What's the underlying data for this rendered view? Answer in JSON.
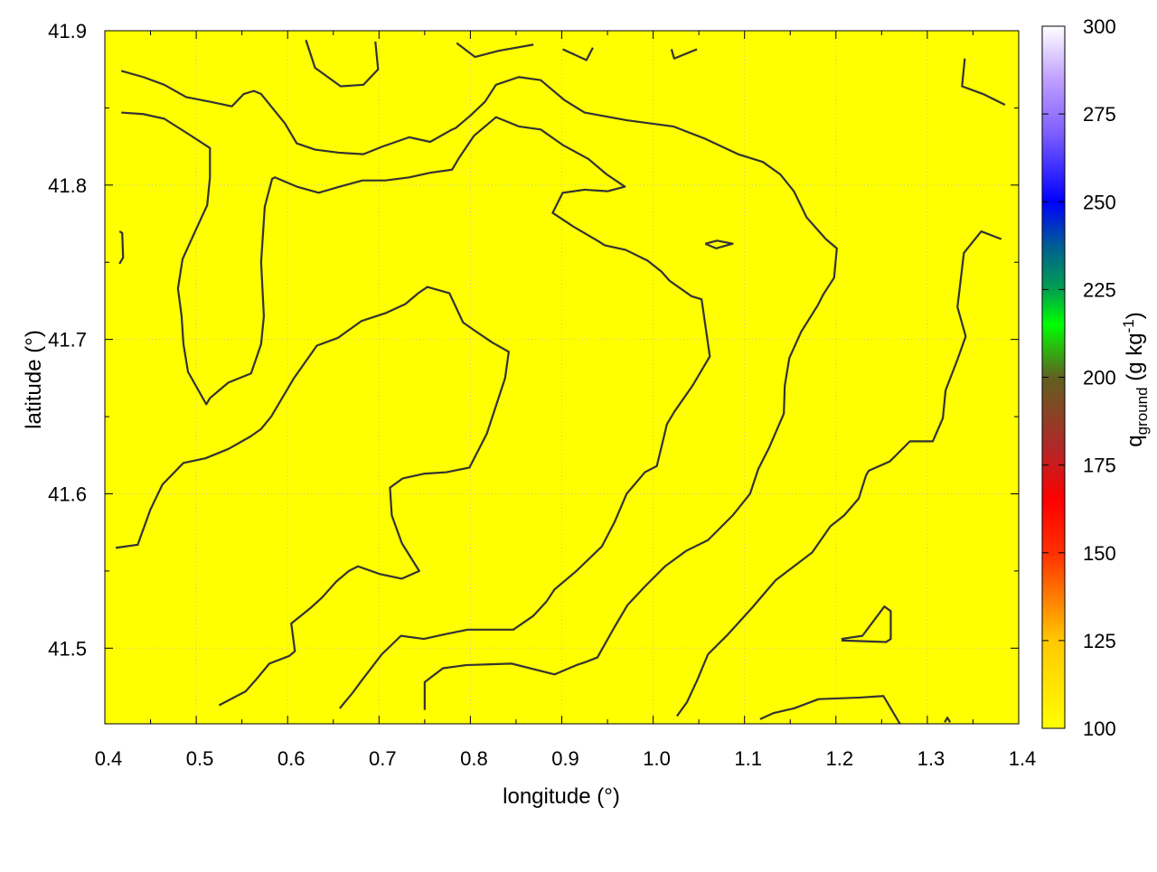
{
  "chart_data": {
    "type": "heatmap",
    "xlabel": "longitude (°)",
    "ylabel": "latitude (°)",
    "colorbar_label": "q",
    "colorbar_label_sub": "ground",
    "colorbar_label_unit": " (g kg",
    "colorbar_label_sup": "-1",
    "colorbar_label_close": ")",
    "xlim": [
      0.4,
      1.4
    ],
    "ylim": [
      41.451,
      41.9
    ],
    "xticks": [
      "0.4",
      "0.5",
      "0.6",
      "0.7",
      "0.8",
      "0.9",
      "1.0",
      "1.1",
      "1.2",
      "1.3",
      "1.4"
    ],
    "yticks": [
      "41.5",
      "41.6",
      "41.7",
      "41.8",
      "41.9"
    ],
    "cbrange": [
      100,
      300
    ],
    "cbticks": [
      "100",
      "125",
      "150",
      "175",
      "200",
      "225",
      "250",
      "275",
      "300"
    ],
    "grid": true,
    "field_value_approx": 100,
    "field_color": "#ffff00",
    "contour_color": "#333333",
    "palette": [
      [
        100,
        "#ffff00"
      ],
      [
        125,
        "#ffc800"
      ],
      [
        150,
        "#ff3000"
      ],
      [
        165,
        "#ff0000"
      ],
      [
        180,
        "#b02828"
      ],
      [
        200,
        "#606020"
      ],
      [
        215,
        "#00ff00"
      ],
      [
        225,
        "#00a050"
      ],
      [
        237,
        "#006090"
      ],
      [
        250,
        "#0000ff"
      ],
      [
        270,
        "#8060ff"
      ],
      [
        285,
        "#c0a0ff"
      ],
      [
        300,
        "#ffffff"
      ]
    ],
    "contours": [
      [
        [
          0.418,
          41.874
        ],
        [
          0.442,
          41.87
        ],
        [
          0.465,
          41.865
        ],
        [
          0.489,
          41.857
        ],
        [
          0.515,
          41.854
        ],
        [
          0.539,
          41.851
        ],
        [
          0.552,
          41.859
        ],
        [
          0.563,
          41.861
        ],
        [
          0.571,
          41.859
        ],
        [
          0.597,
          41.84
        ],
        [
          0.61,
          41.827
        ],
        [
          0.63,
          41.823
        ],
        [
          0.656,
          41.821
        ],
        [
          0.683,
          41.82
        ],
        [
          0.704,
          41.825
        ],
        [
          0.733,
          41.831
        ],
        [
          0.756,
          41.828
        ],
        [
          0.78,
          41.836
        ],
        [
          0.784,
          41.837
        ],
        [
          0.8,
          41.845
        ],
        [
          0.816,
          41.854
        ],
        [
          0.828,
          41.865
        ],
        [
          0.853,
          41.87
        ],
        [
          0.877,
          41.868
        ],
        [
          0.903,
          41.855
        ],
        [
          0.925,
          41.847
        ],
        [
          0.971,
          41.842
        ],
        [
          1.022,
          41.838
        ],
        [
          1.057,
          41.83
        ],
        [
          1.093,
          41.82
        ],
        [
          1.12,
          41.815
        ],
        [
          1.139,
          41.807
        ],
        [
          1.154,
          41.796
        ],
        [
          1.168,
          41.779
        ],
        [
          1.189,
          41.765
        ],
        [
          1.201,
          41.759
        ],
        [
          1.198,
          41.74
        ],
        [
          1.186,
          41.729
        ],
        [
          1.18,
          41.722
        ],
        [
          1.162,
          41.705
        ],
        [
          1.149,
          41.688
        ],
        [
          1.144,
          41.67
        ],
        [
          1.143,
          41.652
        ],
        [
          1.127,
          41.63
        ],
        [
          1.115,
          41.616
        ],
        [
          1.106,
          41.6
        ],
        [
          1.087,
          41.586
        ],
        [
          1.06,
          41.57
        ],
        [
          1.036,
          41.563
        ],
        [
          1.013,
          41.553
        ],
        [
          0.991,
          41.54
        ],
        [
          0.972,
          41.528
        ],
        [
          0.958,
          41.514
        ],
        [
          0.939,
          41.494
        ],
        [
          0.926,
          41.491
        ],
        [
          0.916,
          41.489
        ],
        [
          0.892,
          41.483
        ],
        [
          0.845,
          41.49
        ],
        [
          0.795,
          41.489
        ],
        [
          0.77,
          41.487
        ],
        [
          0.75,
          41.478
        ],
        [
          0.75,
          41.46
        ]
      ],
      [
        [
          0.418,
          41.847
        ],
        [
          0.442,
          41.846
        ],
        [
          0.465,
          41.843
        ],
        [
          0.489,
          41.834
        ],
        [
          0.515,
          41.824
        ],
        [
          0.515,
          41.805
        ],
        [
          0.512,
          41.787
        ],
        [
          0.498,
          41.769
        ],
        [
          0.485,
          41.752
        ],
        [
          0.48,
          41.733
        ],
        [
          0.484,
          41.715
        ],
        [
          0.486,
          41.697
        ],
        [
          0.491,
          41.679
        ],
        [
          0.511,
          41.658
        ],
        [
          0.515,
          41.662
        ],
        [
          0.535,
          41.672
        ],
        [
          0.56,
          41.678
        ],
        [
          0.571,
          41.697
        ],
        [
          0.574,
          41.715
        ],
        [
          0.571,
          41.75
        ],
        [
          0.575,
          41.786
        ],
        [
          0.583,
          41.804
        ],
        [
          0.586,
          41.805
        ],
        [
          0.61,
          41.799
        ],
        [
          0.634,
          41.795
        ],
        [
          0.657,
          41.799
        ],
        [
          0.682,
          41.803
        ],
        [
          0.707,
          41.803
        ],
        [
          0.733,
          41.805
        ],
        [
          0.756,
          41.808
        ],
        [
          0.78,
          41.81
        ],
        [
          0.788,
          41.818
        ],
        [
          0.804,
          41.832
        ],
        [
          0.828,
          41.844
        ],
        [
          0.853,
          41.838
        ],
        [
          0.877,
          41.836
        ],
        [
          0.901,
          41.826
        ],
        [
          0.929,
          41.817
        ],
        [
          0.949,
          41.807
        ],
        [
          0.969,
          41.799
        ],
        [
          0.95,
          41.796
        ],
        [
          0.925,
          41.797
        ],
        [
          0.901,
          41.795
        ],
        [
          0.89,
          41.782
        ],
        [
          0.913,
          41.773
        ],
        [
          0.939,
          41.764
        ],
        [
          0.947,
          41.761
        ],
        [
          0.97,
          41.758
        ],
        [
          0.994,
          41.751
        ],
        [
          1.009,
          41.744
        ],
        [
          1.018,
          41.738
        ],
        [
          1.042,
          41.728
        ],
        [
          1.053,
          41.726
        ],
        [
          1.062,
          41.689
        ],
        [
          1.043,
          41.67
        ],
        [
          1.023,
          41.653
        ],
        [
          1.015,
          41.645
        ],
        [
          1.011,
          41.635
        ],
        [
          1.004,
          41.618
        ],
        [
          0.991,
          41.614
        ],
        [
          0.971,
          41.6
        ],
        [
          0.958,
          41.582
        ],
        [
          0.944,
          41.566
        ],
        [
          0.916,
          41.55
        ],
        [
          0.892,
          41.538
        ],
        [
          0.883,
          41.53
        ],
        [
          0.869,
          41.521
        ],
        [
          0.847,
          41.512
        ],
        [
          0.797,
          41.512
        ],
        [
          0.772,
          41.509
        ],
        [
          0.749,
          41.506
        ],
        [
          0.724,
          41.508
        ],
        [
          0.703,
          41.496
        ],
        [
          0.681,
          41.479
        ],
        [
          0.671,
          41.471
        ],
        [
          0.657,
          41.461
        ]
      ],
      [
        [
          0.412,
          41.565
        ],
        [
          0.436,
          41.567
        ],
        [
          0.439,
          41.572
        ],
        [
          0.45,
          41.59
        ],
        [
          0.463,
          41.606
        ],
        [
          0.486,
          41.62
        ],
        [
          0.51,
          41.623
        ],
        [
          0.535,
          41.629
        ],
        [
          0.559,
          41.637
        ],
        [
          0.571,
          41.642
        ],
        [
          0.582,
          41.65
        ],
        [
          0.607,
          41.675
        ],
        [
          0.632,
          41.696
        ],
        [
          0.655,
          41.701
        ],
        [
          0.681,
          41.712
        ],
        [
          0.707,
          41.717
        ],
        [
          0.729,
          41.723
        ],
        [
          0.743,
          41.73
        ],
        [
          0.753,
          41.734
        ],
        [
          0.777,
          41.73
        ],
        [
          0.792,
          41.711
        ],
        [
          0.804,
          41.706
        ],
        [
          0.824,
          41.698
        ],
        [
          0.842,
          41.692
        ],
        [
          0.838,
          41.675
        ],
        [
          0.828,
          41.657
        ],
        [
          0.818,
          41.639
        ],
        [
          0.799,
          41.617
        ],
        [
          0.774,
          41.614
        ],
        [
          0.749,
          41.613
        ],
        [
          0.726,
          41.61
        ],
        [
          0.712,
          41.604
        ],
        [
          0.714,
          41.586
        ],
        [
          0.725,
          41.568
        ],
        [
          0.744,
          41.55
        ],
        [
          0.725,
          41.545
        ],
        [
          0.701,
          41.548
        ],
        [
          0.677,
          41.553
        ],
        [
          0.667,
          41.55
        ],
        [
          0.653,
          41.543
        ],
        [
          0.638,
          41.533
        ],
        [
          0.625,
          41.526
        ],
        [
          0.604,
          41.516
        ],
        [
          0.608,
          41.498
        ],
        [
          0.602,
          41.495
        ],
        [
          0.58,
          41.49
        ],
        [
          0.566,
          41.48
        ],
        [
          0.554,
          41.472
        ],
        [
          0.525,
          41.463
        ]
      ],
      [
        [
          1.341,
          41.882
        ],
        [
          1.338,
          41.864
        ],
        [
          1.361,
          41.859
        ],
        [
          1.385,
          41.852
        ]
      ],
      [
        [
          1.381,
          41.765
        ],
        [
          1.359,
          41.77
        ],
        [
          1.34,
          41.756
        ],
        [
          1.333,
          41.721
        ],
        [
          1.342,
          41.702
        ],
        [
          1.333,
          41.687
        ],
        [
          1.32,
          41.667
        ],
        [
          1.317,
          41.649
        ],
        [
          1.306,
          41.634
        ],
        [
          1.281,
          41.634
        ],
        [
          1.259,
          41.621
        ],
        [
          1.236,
          41.615
        ],
        [
          1.233,
          41.612
        ],
        [
          1.225,
          41.597
        ],
        [
          1.209,
          41.586
        ],
        [
          1.194,
          41.579
        ],
        [
          1.174,
          41.562
        ],
        [
          1.154,
          41.553
        ],
        [
          1.134,
          41.544
        ],
        [
          1.108,
          41.526
        ],
        [
          1.082,
          41.509
        ],
        [
          1.06,
          41.496
        ],
        [
          1.048,
          41.479
        ],
        [
          1.037,
          41.465
        ],
        [
          1.026,
          41.456
        ]
      ],
      [
        [
          1.117,
          41.454
        ],
        [
          1.132,
          41.458
        ],
        [
          1.154,
          41.461
        ],
        [
          1.181,
          41.467
        ],
        [
          1.226,
          41.468
        ],
        [
          1.252,
          41.469
        ],
        [
          1.27,
          41.451
        ]
      ],
      [
        [
          1.206,
          41.506
        ],
        [
          1.229,
          41.508
        ],
        [
          1.253,
          41.527
        ],
        [
          1.26,
          41.524
        ],
        [
          1.26,
          41.506
        ],
        [
          1.255,
          41.504
        ],
        [
          1.206,
          41.505
        ]
      ],
      [
        [
          1.057,
          41.762
        ],
        [
          1.07,
          41.764
        ],
        [
          1.087,
          41.762
        ],
        [
          1.069,
          41.759
        ],
        [
          1.057,
          41.762
        ]
      ],
      [
        [
          0.62,
          41.894
        ],
        [
          0.63,
          41.876
        ],
        [
          0.658,
          41.864
        ],
        [
          0.683,
          41.865
        ],
        [
          0.699,
          41.875
        ],
        [
          0.696,
          41.893
        ]
      ],
      [
        [
          0.785,
          41.892
        ],
        [
          0.805,
          41.883
        ],
        [
          0.831,
          41.887
        ],
        [
          0.869,
          41.891
        ]
      ],
      [
        [
          0.901,
          41.888
        ],
        [
          0.927,
          41.881
        ],
        [
          0.934,
          41.889
        ]
      ],
      [
        [
          1.02,
          41.888
        ],
        [
          1.023,
          41.882
        ],
        [
          1.048,
          41.888
        ]
      ],
      [
        [
          0.416,
          41.77
        ],
        [
          0.419,
          41.769
        ],
        [
          0.42,
          41.753
        ],
        [
          0.416,
          41.749
        ]
      ],
      [
        [
          1.319,
          41.452
        ],
        [
          1.322,
          41.455
        ],
        [
          1.325,
          41.452
        ]
      ]
    ]
  }
}
